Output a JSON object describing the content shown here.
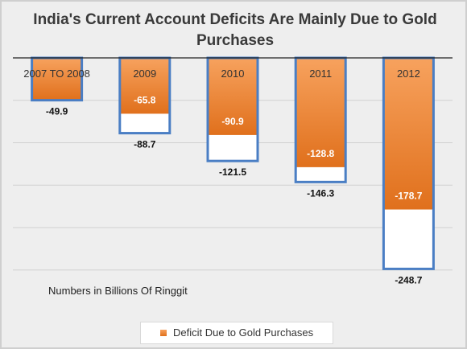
{
  "chart_data": {
    "type": "bar",
    "title": "India's Current Account Deficits Are Mainly Due to Gold Purchases",
    "categories": [
      "2007 TO 2008",
      "2009",
      "2010",
      "2011",
      "2012"
    ],
    "series": [
      {
        "name": "Deficit Due to Gold Purchases",
        "values": [
          -49.9,
          -65.8,
          -90.9,
          -128.8,
          -178.7
        ]
      },
      {
        "values": [
          -49.9,
          -88.7,
          -121.5,
          -146.3,
          -248.7
        ]
      }
    ],
    "ylim": [
      -280,
      0
    ],
    "grid": true,
    "legend": "bottom",
    "annotation": "Numbers in Billions Of Ringgit",
    "colors": {
      "orange_light": "#f7a25e",
      "orange_dark": "#e0701c",
      "outline": "#4a7ec4",
      "grid": "#d0d0d0",
      "background": "#eeeeee"
    }
  }
}
